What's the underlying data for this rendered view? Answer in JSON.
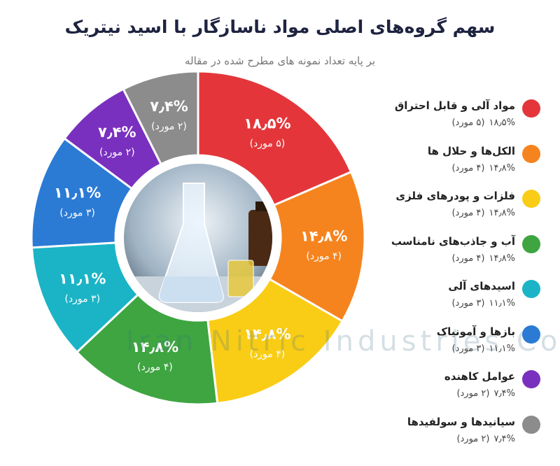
{
  "chart_data": {
    "type": "pie",
    "title": "سهم گروه‌های اصلی مواد ناسازگار با اسید نیتریک",
    "subtitle": "بر پایه تعداد نمونه های مطرح شده در مقاله",
    "categories": [
      "مواد آلی و قابل احتراق",
      "الکل‌ها و حلال ها",
      "فلزات و پودرهای فلزی",
      "آب و جاذب‌های نامناسب",
      "اسیدهای آلی",
      "بازها و آمونیاک",
      "عوامل کاهنده",
      "سیانیدها و سولفیدها"
    ],
    "values": [
      18.5,
      14.8,
      14.8,
      14.8,
      11.1,
      11.1,
      7.4,
      7.4
    ],
    "value_labels": [
      "۱۸٫۵%",
      "۱۴٫۸%",
      "۱۴٫۸%",
      "۱۴٫۸%",
      "۱۱٫۱%",
      "۱۱٫۱%",
      "۷٫۴%",
      "۷٫۴%"
    ],
    "counts": [
      5,
      4,
      4,
      4,
      3,
      3,
      2,
      2
    ],
    "count_labels": [
      "(۵ مورد)",
      "(۴ مورد)",
      "(۴ مورد)",
      "(۴ مورد)",
      "(۳ مورد)",
      "(۳ مورد)",
      "(۲ مورد)",
      "(۲ مورد)"
    ],
    "colors": [
      "#e4363a",
      "#f5841f",
      "#f9cd16",
      "#3ea541",
      "#1ab4c6",
      "#2b7bd5",
      "#7a30be",
      "#8c8c8c"
    ],
    "watermark": "Iran Nitric Industries Co"
  }
}
